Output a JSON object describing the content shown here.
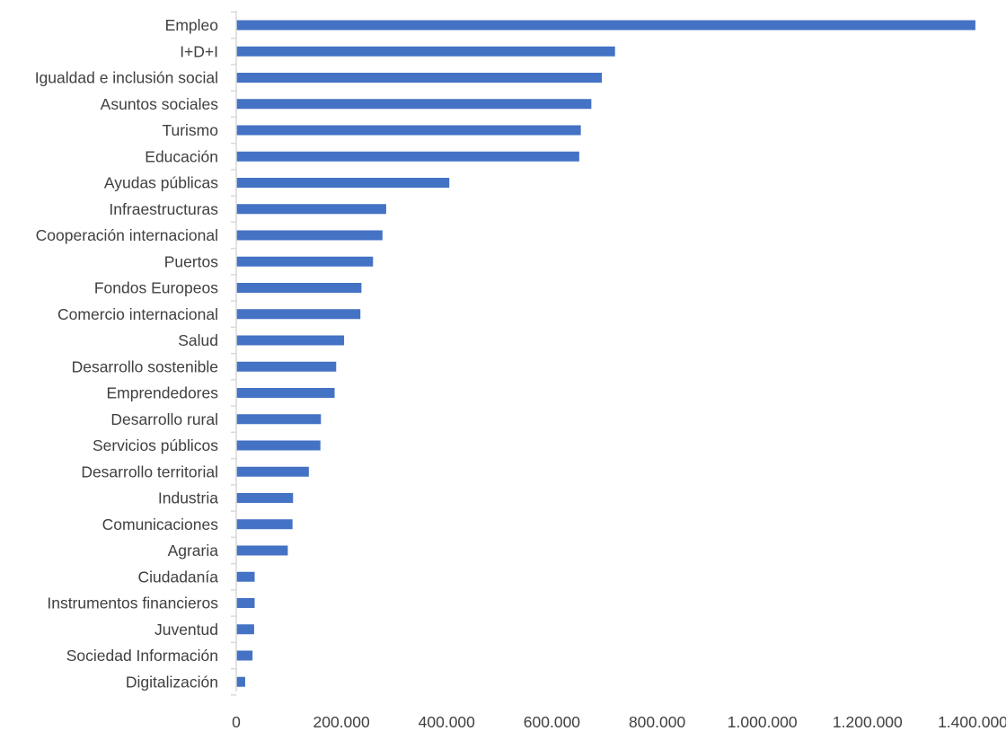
{
  "chart_data": {
    "type": "bar",
    "orientation": "horizontal",
    "title": "",
    "xlabel": "",
    "ylabel": "",
    "categories": [
      "Empleo",
      "I+D+I",
      "Igualdad e inclusión social",
      "Asuntos sociales",
      "Turismo",
      "Educación",
      "Ayudas públicas",
      "Infraestructuras",
      "Cooperación internacional",
      "Puertos",
      "Fondos Europeos",
      "Comercio internacional",
      "Salud",
      "Desarrollo sostenible",
      "Emprendedores",
      "Desarrollo rural",
      "Servicios públicos",
      "Desarrollo territorial",
      "Industria",
      "Comunicaciones",
      "Agraria",
      "Ciudadanía",
      "Instrumentos financieros",
      "Juventud",
      "Sociedad Información",
      "Digitalización"
    ],
    "values": [
      1405000,
      720000,
      695000,
      675000,
      655000,
      652000,
      405000,
      285000,
      278000,
      260000,
      238000,
      236000,
      205000,
      190000,
      187000,
      161000,
      160000,
      138000,
      108000,
      107000,
      98000,
      35000,
      35000,
      34000,
      31000,
      17000
    ],
    "xlim": [
      0,
      1400000
    ],
    "xticks": [
      0,
      200000,
      400000,
      600000,
      800000,
      1000000,
      1200000,
      1400000
    ],
    "xtick_labels": [
      "0",
      "200.000",
      "400.000",
      "600.000",
      "800.000",
      "1.000.000",
      "1.200.000",
      "1.400.000"
    ],
    "bar_color": "#4472c4",
    "axis_color": "#d9d9d9",
    "text_color": "#404040",
    "grid": false,
    "legend": "none"
  }
}
